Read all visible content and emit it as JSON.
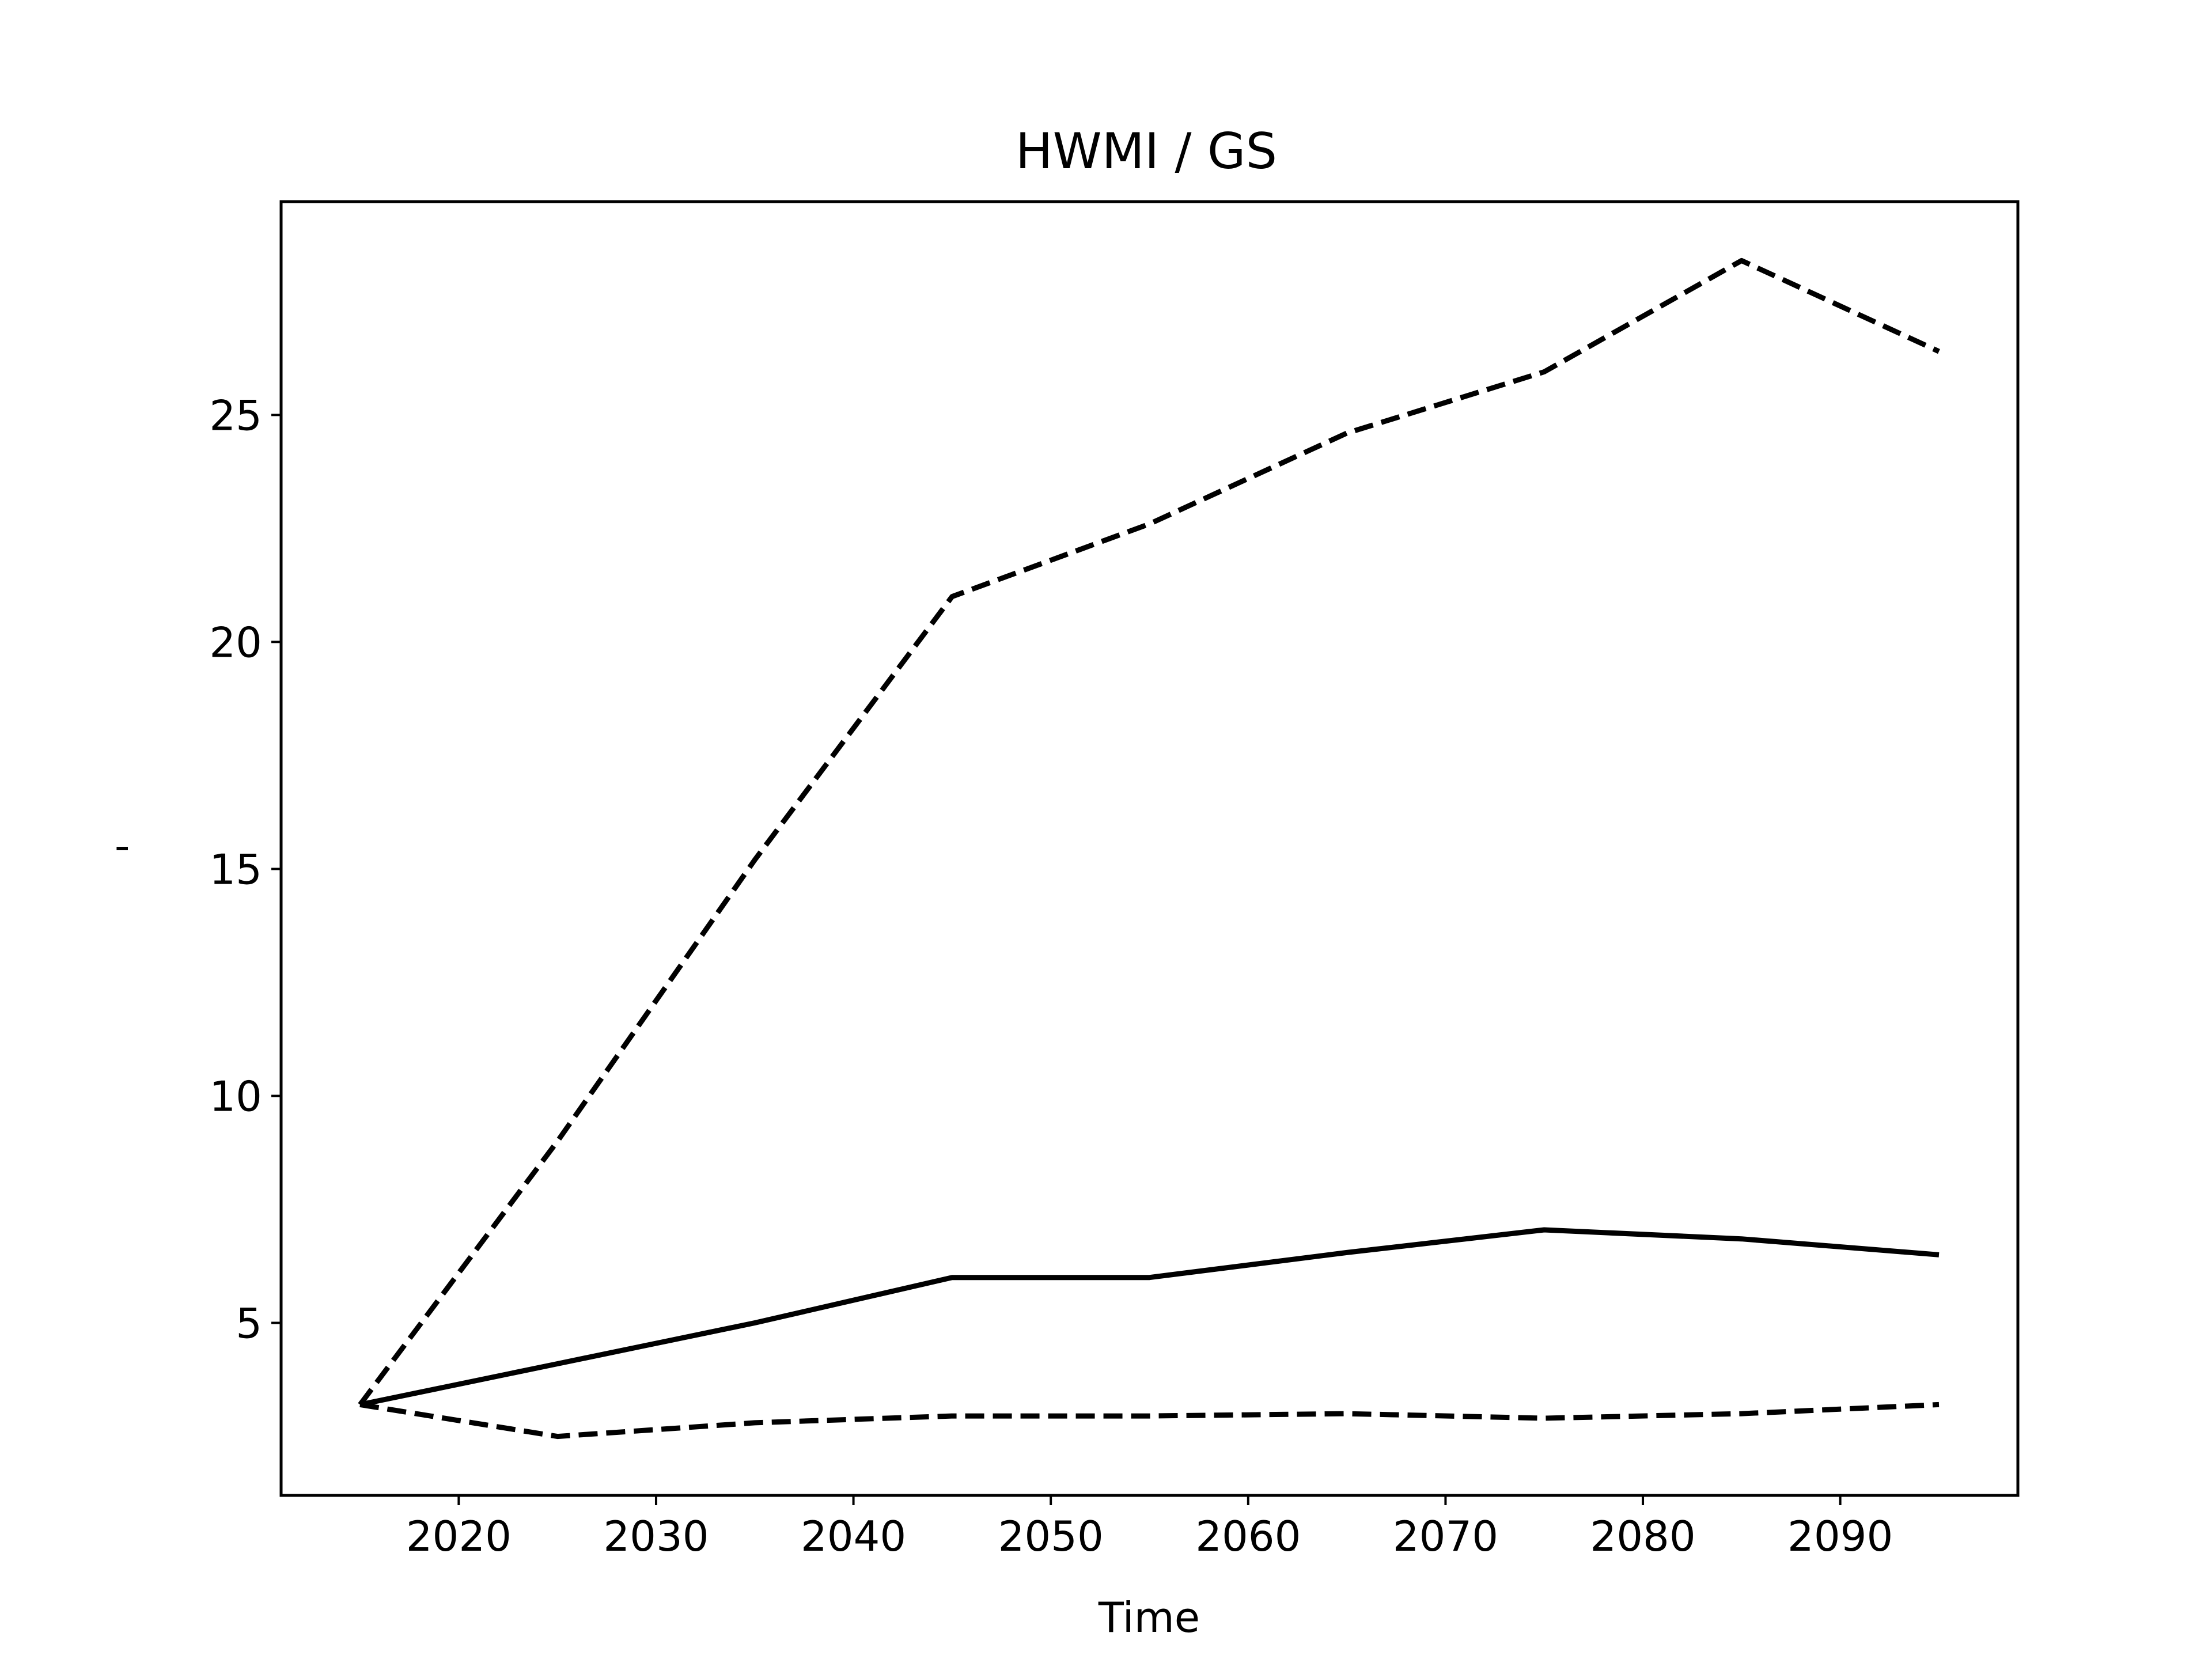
{
  "chart_data": {
    "type": "line",
    "title": "HWMI / GS",
    "xlabel": "Time",
    "ylabel": "'",
    "xlim": [
      2011,
      2099
    ],
    "ylim": [
      1.2,
      29.7
    ],
    "xticks": [
      2020,
      2030,
      2040,
      2050,
      2060,
      2070,
      2080,
      2090
    ],
    "yticks": [
      5,
      10,
      15,
      20,
      25
    ],
    "grid": false,
    "legend": "none",
    "x": [
      2015,
      2025,
      2035,
      2045,
      2055,
      2065,
      2075,
      2085,
      2095
    ],
    "series": [
      {
        "style": "solid",
        "color": "#000000",
        "values": [
          3.2,
          4.1,
          5.0,
          6.0,
          6.0,
          6.55,
          7.05,
          6.85,
          6.5
        ]
      },
      {
        "style": "dashed",
        "color": "#000000",
        "values": [
          3.2,
          9.0,
          15.2,
          21.0,
          22.6,
          24.6,
          25.95,
          28.4,
          26.4
        ]
      },
      {
        "style": "dashed",
        "color": "#000000",
        "values": [
          3.2,
          2.5,
          2.8,
          2.95,
          2.95,
          3.0,
          2.9,
          3.0,
          3.2
        ]
      }
    ]
  }
}
